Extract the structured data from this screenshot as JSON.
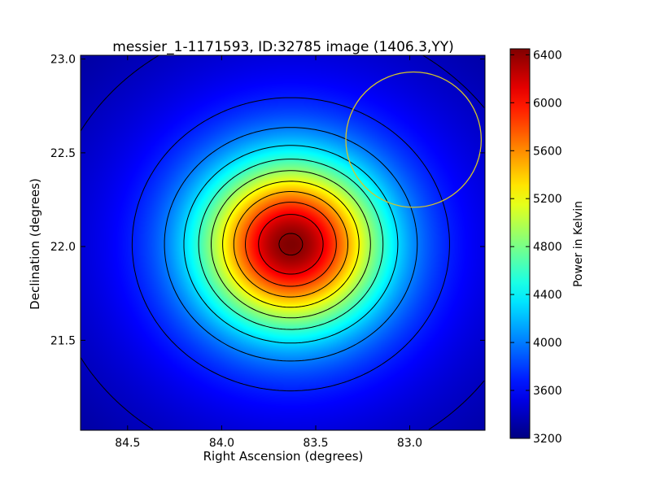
{
  "chart_data": {
    "type": "heatmap",
    "title": "messier_1-1171593, ID:32785 image (1406.3,YY)",
    "xlabel": "Right Ascension (degrees)",
    "ylabel": "Declination (degrees)",
    "xlim": [
      84.75,
      82.6
    ],
    "ylim": [
      21.02,
      23.02
    ],
    "x_ticks": [
      84.5,
      84.0,
      83.5,
      83.0
    ],
    "x_tick_labels": [
      "84.5",
      "84.0",
      "83.5",
      "83.0"
    ],
    "y_ticks": [
      21.5,
      22.0,
      22.5,
      23.0
    ],
    "y_tick_labels": [
      "21.5",
      "22.0",
      "22.5",
      "23.0"
    ],
    "colormap": "jet",
    "colorbar": {
      "label": "Power in Kelvin",
      "min": 3200,
      "max": 6450,
      "ticks": [
        3200,
        3600,
        4000,
        4400,
        4800,
        5200,
        5600,
        6000,
        6400
      ],
      "tick_labels": [
        "3200",
        "3600",
        "4000",
        "4400",
        "4800",
        "5200",
        "5600",
        "6000",
        "6400"
      ]
    },
    "source": {
      "ra": 83.63,
      "dec": 22.01,
      "peak": 6450,
      "background": 3200
    },
    "contour_levels": [
      3400,
      3700,
      4000,
      4300,
      4600,
      4900,
      5200,
      5500,
      5800,
      6100,
      6400
    ],
    "circle_annotation": {
      "ra": 82.98,
      "dec": 22.57,
      "radius_deg": 0.36,
      "color": "#d4c52a"
    },
    "grid": false
  }
}
